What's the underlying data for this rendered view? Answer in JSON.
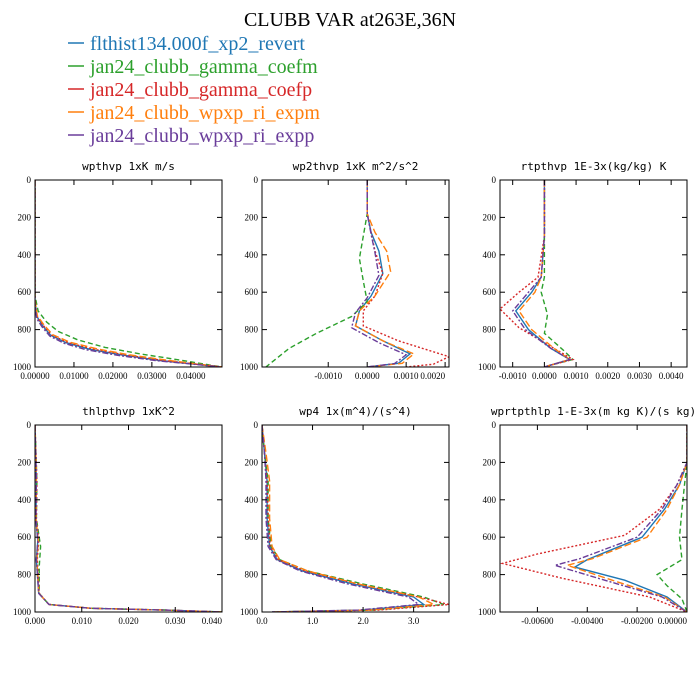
{
  "figure": {
    "title": "CLUBB VAR at263E,36N"
  },
  "legend": {
    "placement": "top-left",
    "entries": [
      {
        "name": "flthist134.000f_xp2_revert",
        "color": "#1f77b4"
      },
      {
        "name": "jan24_clubb_gamma_coefm",
        "color": "#2ca02c"
      },
      {
        "name": "jan24_clubb_gamma_coefp",
        "color": "#d62728"
      },
      {
        "name": "jan24_clubb_wpxp_ri_expm",
        "color": "#ff7f0e"
      },
      {
        "name": "jan24_clubb_wpxp_ri_expp",
        "color": "#6a3d9a"
      }
    ]
  },
  "chart_data": [
    {
      "type": "line",
      "title": "wpthvp   1xK m/s",
      "xlim": [
        0,
        0.048
      ],
      "ylim": [
        1000,
        0
      ],
      "xticks": [
        0,
        0.01,
        0.02,
        0.03,
        0.04
      ],
      "xtick_labels": [
        "0.00000",
        "0.01000",
        "0.02000",
        "0.03000",
        "0.04000"
      ],
      "yticks": [
        0,
        200,
        400,
        600,
        800,
        1000
      ],
      "ytick_labels": [
        "0",
        "200",
        "400",
        "600",
        "800",
        "1000"
      ],
      "series": [
        {
          "color": "#1f77b4",
          "x": [
            0,
            0,
            0.0005,
            0.002,
            0.004,
            0.008,
            0.014,
            0.022,
            0.032,
            0.048
          ],
          "y": [
            0,
            650,
            730,
            780,
            830,
            870,
            905,
            935,
            965,
            1000
          ]
        },
        {
          "color": "#2ca02c",
          "x": [
            0,
            0,
            0.0008,
            0.003,
            0.006,
            0.011,
            0.018,
            0.027,
            0.037,
            0.048
          ],
          "y": [
            0,
            620,
            700,
            760,
            810,
            855,
            895,
            930,
            962,
            1000
          ]
        },
        {
          "color": "#d62728",
          "x": [
            0,
            0,
            0.0005,
            0.0022,
            0.0043,
            0.0085,
            0.015,
            0.023,
            0.033,
            0.048
          ],
          "y": [
            0,
            650,
            730,
            780,
            830,
            870,
            905,
            935,
            965,
            1000
          ]
        },
        {
          "color": "#ff7f0e",
          "x": [
            0,
            0,
            0.0006,
            0.0024,
            0.0046,
            0.009,
            0.016,
            0.024,
            0.034,
            0.048
          ],
          "y": [
            0,
            640,
            725,
            778,
            828,
            868,
            903,
            934,
            964,
            1000
          ]
        },
        {
          "color": "#6a3d9a",
          "x": [
            0,
            0,
            0.0004,
            0.0018,
            0.0038,
            0.0075,
            0.013,
            0.021,
            0.031,
            0.048
          ],
          "y": [
            0,
            660,
            740,
            785,
            835,
            873,
            907,
            937,
            966,
            1000
          ]
        }
      ]
    },
    {
      "type": "line",
      "title": "wp2thvp   1xK m^2/s^2",
      "xlim": [
        -0.0027,
        0.0021
      ],
      "ylim": [
        1000,
        0
      ],
      "xticks": [
        -0.001,
        0,
        0.001,
        0.002
      ],
      "xtick_labels": [
        "-0.0010",
        "0.0000",
        "0.0010",
        "0.0020"
      ],
      "yticks": [
        0,
        200,
        400,
        600,
        800,
        1000
      ],
      "ytick_labels": [
        "0",
        "200",
        "400",
        "600",
        "800",
        "1000"
      ],
      "series": [
        {
          "color": "#1f77b4",
          "x": [
            0,
            0,
            0.0001,
            0.0003,
            0.0004,
            0.0001,
            -0.0002,
            -0.0003,
            0.0004,
            0.0011,
            0.0008,
            0
          ],
          "y": [
            0,
            180,
            280,
            380,
            500,
            620,
            700,
            780,
            860,
            930,
            980,
            1000
          ]
        },
        {
          "color": "#2ca02c",
          "x": [
            0,
            0,
            -0.0001,
            -0.0002,
            -0.0001,
            0,
            -0.0004,
            -0.0013,
            -0.002,
            -0.0026
          ],
          "y": [
            0,
            180,
            300,
            420,
            540,
            650,
            730,
            820,
            900,
            1000
          ]
        },
        {
          "color": "#d62728",
          "x": [
            0,
            0,
            0.0001,
            0.0002,
            0.0004,
            0.0002,
            -0.0001,
            -0.0001,
            0.0008,
            0.0021,
            0.0017,
            0.001
          ],
          "y": [
            0,
            180,
            280,
            380,
            500,
            620,
            700,
            780,
            860,
            945,
            985,
            1000
          ]
        },
        {
          "color": "#ff7f0e",
          "x": [
            0,
            0,
            0.0002,
            0.0005,
            0.0006,
            0.0002,
            -0.0002,
            -0.0003,
            0.0004,
            0.0012,
            0.0009,
            0
          ],
          "y": [
            0,
            180,
            280,
            380,
            490,
            620,
            700,
            780,
            860,
            930,
            980,
            1000
          ]
        },
        {
          "color": "#6a3d9a",
          "x": [
            0,
            0,
            0.0001,
            0.0002,
            0.0003,
            0,
            -0.0003,
            -0.0004,
            0.0003,
            0.001,
            0.0007,
            0
          ],
          "y": [
            0,
            180,
            290,
            390,
            510,
            630,
            710,
            790,
            870,
            935,
            982,
            1000
          ]
        }
      ]
    },
    {
      "type": "line",
      "title": "rtpthvp   1E-3x(kg/kg) K",
      "xlim": [
        -0.0014,
        0.0045
      ],
      "ylim": [
        1000,
        0
      ],
      "xticks": [
        -0.001,
        0,
        0.001,
        0.002,
        0.003,
        0.004
      ],
      "xtick_labels": [
        "-0.0010",
        "0.0000",
        "0.0010",
        "0.0020",
        "0.0030",
        "0.0040"
      ],
      "yticks": [
        0,
        200,
        400,
        600,
        800,
        1000
      ],
      "ytick_labels": [
        "0",
        "200",
        "400",
        "600",
        "800",
        "1000"
      ],
      "series": [
        {
          "color": "#1f77b4",
          "x": [
            0,
            0,
            -0.0001,
            -0.0004,
            -0.0009,
            -0.0005,
            0.0002,
            0.0008,
            0.0002,
            0
          ],
          "y": [
            0,
            300,
            520,
            600,
            700,
            800,
            900,
            960,
            990,
            1000
          ]
        },
        {
          "color": "#2ca02c",
          "x": [
            0,
            0,
            0,
            -0.0001,
            0.0001,
            0,
            0.0006,
            0.0009,
            0.0002,
            0
          ],
          "y": [
            0,
            300,
            520,
            600,
            720,
            820,
            910,
            960,
            990,
            1000
          ]
        },
        {
          "color": "#d62728",
          "x": [
            0,
            0,
            -0.0002,
            -0.0008,
            -0.0014,
            -0.0008,
            0.0003,
            0.0009,
            0.0002,
            0
          ],
          "y": [
            0,
            300,
            520,
            600,
            690,
            790,
            900,
            960,
            990,
            1000
          ]
        },
        {
          "color": "#ff7f0e",
          "x": [
            0,
            0,
            -0.0001,
            -0.0003,
            -0.0008,
            -0.0004,
            0.0003,
            0.0008,
            0.0002,
            0
          ],
          "y": [
            0,
            300,
            520,
            600,
            700,
            800,
            900,
            960,
            990,
            1000
          ]
        },
        {
          "color": "#6a3d9a",
          "x": [
            0,
            0,
            -0.0001,
            -0.0005,
            -0.001,
            -0.0006,
            0.0002,
            0.0008,
            0.0002,
            0
          ],
          "y": [
            0,
            300,
            520,
            600,
            700,
            800,
            900,
            960,
            990,
            1000
          ]
        }
      ]
    },
    {
      "type": "line",
      "title": "thlpthvp   1xK^2",
      "xlim": [
        0,
        0.04
      ],
      "ylim": [
        1000,
        0
      ],
      "xticks": [
        0,
        0.01,
        0.02,
        0.03,
        0.04
      ],
      "xtick_labels": [
        "0.000",
        "0.010",
        "0.020",
        "0.030",
        "0.040"
      ],
      "yticks": [
        0,
        200,
        400,
        600,
        800,
        1000
      ],
      "ytick_labels": [
        "0",
        "200",
        "400",
        "600",
        "800",
        "1000"
      ],
      "series": [
        {
          "color": "#1f77b4",
          "x": [
            0,
            0.0003,
            0.0002,
            0.0006,
            0.0003,
            0.0008,
            0.003,
            0.012,
            0.028,
            0.04
          ],
          "y": [
            0,
            300,
            500,
            620,
            720,
            900,
            960,
            980,
            990,
            1000
          ]
        },
        {
          "color": "#2ca02c",
          "x": [
            0,
            0.0004,
            0.0003,
            0.0012,
            0.0009,
            0.0009,
            0.003,
            0.012,
            0.028,
            0.04
          ],
          "y": [
            0,
            300,
            500,
            650,
            760,
            900,
            960,
            980,
            990,
            1000
          ]
        },
        {
          "color": "#d62728",
          "x": [
            0,
            0.0004,
            0.0003,
            0.0008,
            0.0005,
            0.0009,
            0.003,
            0.012,
            0.028,
            0.04
          ],
          "y": [
            0,
            300,
            500,
            620,
            720,
            900,
            960,
            980,
            990,
            1000
          ]
        },
        {
          "color": "#ff7f0e",
          "x": [
            0,
            0.0003,
            0.0002,
            0.0007,
            0.0004,
            0.0008,
            0.003,
            0.012,
            0.028,
            0.04
          ],
          "y": [
            0,
            300,
            500,
            620,
            720,
            900,
            960,
            980,
            990,
            1000
          ]
        },
        {
          "color": "#6a3d9a",
          "x": [
            0,
            0.0003,
            0.0002,
            0.0006,
            0.0003,
            0.0008,
            0.003,
            0.012,
            0.028,
            0.04
          ],
          "y": [
            0,
            300,
            500,
            620,
            720,
            900,
            960,
            980,
            990,
            1000
          ]
        }
      ]
    },
    {
      "type": "line",
      "title": "wp4   1x(m^4)/(s^4)",
      "xlim": [
        0,
        3.7
      ],
      "ylim": [
        1000,
        0
      ],
      "xticks": [
        0,
        1,
        2,
        3
      ],
      "xtick_labels": [
        "0.0",
        "1.0",
        "2.0",
        "3.0"
      ],
      "yticks": [
        0,
        200,
        400,
        600,
        800,
        1000
      ],
      "ytick_labels": [
        "0",
        "200",
        "400",
        "600",
        "800",
        "1000"
      ],
      "series": [
        {
          "color": "#1f77b4",
          "x": [
            0,
            0.05,
            0.1,
            0.1,
            0.15,
            0.3,
            0.8,
            1.8,
            3.0,
            3.2,
            2.0,
            0.2
          ],
          "y": [
            0,
            150,
            300,
            500,
            650,
            720,
            780,
            850,
            920,
            960,
            990,
            1000
          ]
        },
        {
          "color": "#2ca02c",
          "x": [
            0,
            0.05,
            0.12,
            0.12,
            0.18,
            0.35,
            0.9,
            2.0,
            3.2,
            3.6,
            2.2,
            0.2
          ],
          "y": [
            0,
            150,
            300,
            500,
            650,
            720,
            780,
            850,
            920,
            960,
            990,
            1000
          ]
        },
        {
          "color": "#d62728",
          "x": [
            0,
            0.05,
            0.1,
            0.12,
            0.16,
            0.32,
            0.85,
            1.9,
            3.1,
            3.7,
            2.3,
            0.2
          ],
          "y": [
            0,
            150,
            300,
            500,
            650,
            720,
            780,
            850,
            920,
            960,
            990,
            1000
          ]
        },
        {
          "color": "#ff7f0e",
          "x": [
            0,
            0.08,
            0.15,
            0.15,
            0.2,
            0.35,
            0.9,
            1.9,
            3.1,
            3.4,
            2.1,
            0.2
          ],
          "y": [
            0,
            150,
            300,
            500,
            650,
            720,
            780,
            850,
            920,
            960,
            990,
            1000
          ]
        },
        {
          "color": "#6a3d9a",
          "x": [
            0,
            0.05,
            0.08,
            0.08,
            0.12,
            0.28,
            0.75,
            1.7,
            2.9,
            3.1,
            1.9,
            0.2
          ],
          "y": [
            0,
            150,
            300,
            500,
            650,
            720,
            780,
            850,
            920,
            960,
            990,
            1000
          ]
        }
      ]
    },
    {
      "type": "line",
      "title": "wprtpthlp   1-E-3x(m kg K)/(s kg)",
      "xlim": [
        -0.0075,
        0
      ],
      "ylim": [
        1000,
        0
      ],
      "xticks": [
        -0.006,
        -0.004,
        -0.002,
        0
      ],
      "xtick_labels": [
        "-0.00600",
        "-0.00400",
        "-0.00200",
        "0.00000"
      ],
      "yticks": [
        0,
        200,
        400,
        600,
        800,
        1000
      ],
      "ytick_labels": [
        "0",
        "200",
        "400",
        "600",
        "800",
        "1000"
      ],
      "series": [
        {
          "color": "#1f77b4",
          "x": [
            0,
            0,
            -0.0003,
            -0.0009,
            -0.0018,
            -0.004,
            -0.0045,
            -0.0025,
            -0.0008,
            0
          ],
          "y": [
            0,
            200,
            320,
            450,
            600,
            720,
            760,
            830,
            920,
            1000
          ]
        },
        {
          "color": "#2ca02c",
          "x": [
            0,
            0,
            -0.0001,
            -0.0002,
            -0.0003,
            -0.0002,
            -0.0012,
            -0.0008,
            -0.0002,
            0
          ],
          "y": [
            0,
            200,
            320,
            450,
            600,
            720,
            800,
            860,
            930,
            1000
          ]
        },
        {
          "color": "#d62728",
          "x": [
            0,
            0,
            -0.0004,
            -0.0011,
            -0.0025,
            -0.006,
            -0.0074,
            -0.005,
            -0.0015,
            0
          ],
          "y": [
            0,
            200,
            320,
            450,
            590,
            690,
            740,
            820,
            920,
            1000
          ]
        },
        {
          "color": "#ff7f0e",
          "x": [
            0,
            0,
            -0.0003,
            -0.0008,
            -0.0016,
            -0.0038,
            -0.0048,
            -0.003,
            -0.0009,
            0
          ],
          "y": [
            0,
            200,
            320,
            450,
            600,
            715,
            750,
            830,
            920,
            1000
          ]
        },
        {
          "color": "#6a3d9a",
          "x": [
            0,
            0,
            -0.0004,
            -0.001,
            -0.002,
            -0.0043,
            -0.0053,
            -0.0033,
            -0.001,
            0
          ],
          "y": [
            0,
            200,
            320,
            450,
            600,
            715,
            750,
            830,
            920,
            1000
          ]
        }
      ]
    }
  ]
}
